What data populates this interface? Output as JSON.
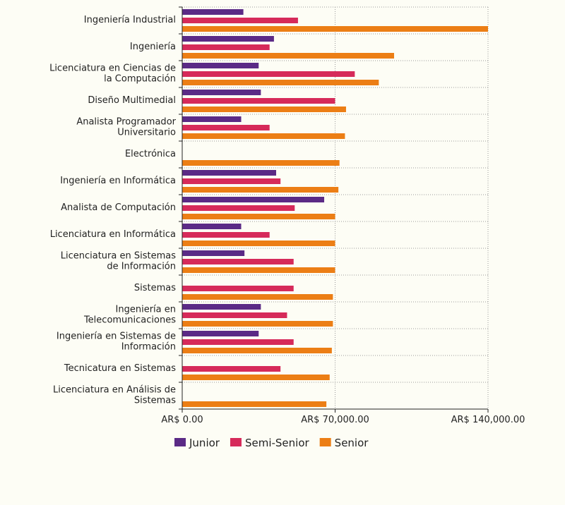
{
  "chart_data": {
    "type": "bar",
    "orientation": "horizontal",
    "title": "",
    "xlabel": "",
    "ylabel": "",
    "xlim": [
      0,
      140000
    ],
    "grid": true,
    "legend_position": "bottom",
    "x_ticks": [
      {
        "value": 0,
        "label": "AR$ 0.00"
      },
      {
        "value": 70000,
        "label": "AR$ 70,000.00"
      },
      {
        "value": 140000,
        "label": "AR$ 140,000.00"
      }
    ],
    "categories": [
      [
        "Ingeniería Industrial"
      ],
      [
        "Ingeniería"
      ],
      [
        "Licenciatura en Ciencias de",
        "la Computación"
      ],
      [
        "Diseño Multimedial"
      ],
      [
        "Analista Programador",
        "Universitario"
      ],
      [
        "Electrónica"
      ],
      [
        "Ingeniería en Informática"
      ],
      [
        "Analista de Computación"
      ],
      [
        "Licenciatura en Informática"
      ],
      [
        "Licenciatura en Sistemas",
        "de Información"
      ],
      [
        "Sistemas"
      ],
      [
        "Ingeniería en",
        "Telecomunicaciones"
      ],
      [
        "Ingeniería en Sistemas de",
        "Información"
      ],
      [
        "Tecnicatura en Sistemas"
      ],
      [
        "Licenciatura en Análisis de",
        "Sistemas"
      ]
    ],
    "series": [
      {
        "name": "Junior",
        "color": "#5b2a86",
        "values": [
          28000,
          42000,
          35000,
          36000,
          27000,
          null,
          43000,
          65000,
          27000,
          28500,
          null,
          36000,
          35000,
          null,
          null
        ]
      },
      {
        "name": "Semi-Senior",
        "color": "#d62a5a",
        "values": [
          53000,
          40000,
          79000,
          70000,
          40000,
          null,
          45000,
          51500,
          40000,
          51000,
          51000,
          48000,
          51000,
          45000,
          null
        ]
      },
      {
        "name": "Senior",
        "color": "#ec7e15",
        "values": [
          140000,
          97000,
          90000,
          75000,
          74500,
          72000,
          71500,
          70000,
          70000,
          70000,
          69000,
          69000,
          68500,
          67500,
          66000
        ]
      }
    ]
  }
}
